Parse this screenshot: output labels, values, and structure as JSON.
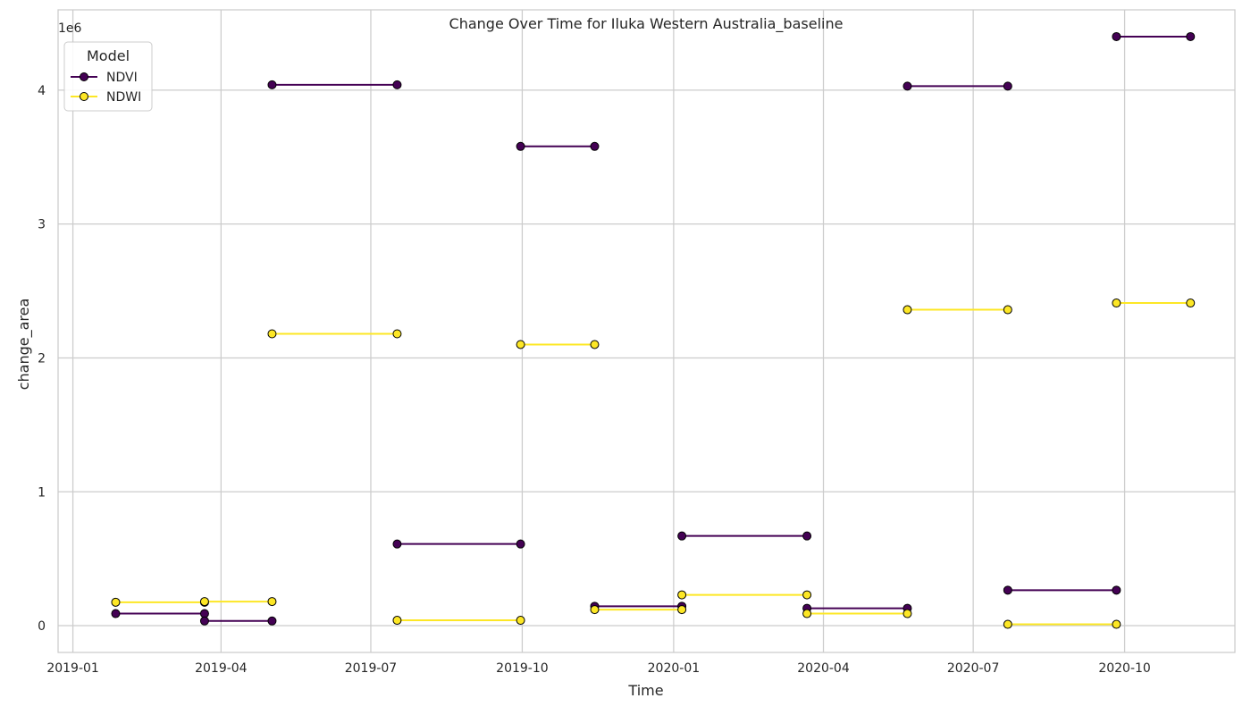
{
  "chart_data": {
    "type": "line",
    "title": "Change Over Time for Iluka Western Australia_baseline",
    "xlabel": "Time",
    "ylabel": "change_area",
    "y_offset_label": "1e6",
    "ylim": [
      -200000,
      4600000
    ],
    "xlim": [
      "2018-12-23",
      "2020-12-07"
    ],
    "x_ticks": [
      "2019-01-01",
      "2019-04-01",
      "2019-07-01",
      "2019-10-01",
      "2020-01-01",
      "2020-04-01",
      "2020-07-01",
      "2020-10-01"
    ],
    "x_tick_labels": [
      "2019-01",
      "2019-04",
      "2019-07",
      "2019-10",
      "2020-01",
      "2020-04",
      "2020-07",
      "2020-10"
    ],
    "y_ticks": [
      0,
      1000000,
      2000000,
      3000000,
      4000000
    ],
    "y_tick_labels": [
      "0",
      "1",
      "2",
      "3",
      "4"
    ],
    "grid": true,
    "legend": {
      "title": "Model",
      "placement": "top-left"
    },
    "series": [
      {
        "name": "NDVI",
        "color": "#440154",
        "segments": [
          [
            [
              "2019-01-27",
              90000
            ],
            [
              "2019-03-22",
              90000
            ]
          ],
          [
            [
              "2019-03-22",
              35000
            ],
            [
              "2019-05-02",
              35000
            ]
          ],
          [
            [
              "2019-05-02",
              4040000
            ],
            [
              "2019-07-17",
              4040000
            ]
          ],
          [
            [
              "2019-07-17",
              610000
            ],
            [
              "2019-09-30",
              610000
            ]
          ],
          [
            [
              "2019-09-30",
              3580000
            ],
            [
              "2019-11-14",
              3580000
            ]
          ],
          [
            [
              "2019-11-14",
              145000
            ],
            [
              "2020-01-06",
              145000
            ]
          ],
          [
            [
              "2020-01-06",
              670000
            ],
            [
              "2020-03-22",
              670000
            ]
          ],
          [
            [
              "2020-03-22",
              130000
            ],
            [
              "2020-05-22",
              130000
            ]
          ],
          [
            [
              "2020-05-22",
              4030000
            ],
            [
              "2020-07-22",
              4030000
            ]
          ],
          [
            [
              "2020-07-22",
              265000
            ],
            [
              "2020-09-26",
              265000
            ]
          ],
          [
            [
              "2020-09-26",
              4400000
            ],
            [
              "2020-11-10",
              4400000
            ]
          ]
        ]
      },
      {
        "name": "NDWI",
        "color": "#fde725",
        "segments": [
          [
            [
              "2019-01-27",
              175000
            ],
            [
              "2019-03-22",
              175000
            ]
          ],
          [
            [
              "2019-03-22",
              180000
            ],
            [
              "2019-05-02",
              180000
            ]
          ],
          [
            [
              "2019-05-02",
              2180000
            ],
            [
              "2019-07-17",
              2180000
            ]
          ],
          [
            [
              "2019-07-17",
              40000
            ],
            [
              "2019-09-30",
              40000
            ]
          ],
          [
            [
              "2019-09-30",
              2100000
            ],
            [
              "2019-11-14",
              2100000
            ]
          ],
          [
            [
              "2019-11-14",
              120000
            ],
            [
              "2020-01-06",
              120000
            ]
          ],
          [
            [
              "2020-01-06",
              230000
            ],
            [
              "2020-03-22",
              230000
            ]
          ],
          [
            [
              "2020-03-22",
              90000
            ],
            [
              "2020-05-22",
              90000
            ]
          ],
          [
            [
              "2020-05-22",
              2360000
            ],
            [
              "2020-07-22",
              2360000
            ]
          ],
          [
            [
              "2020-07-22",
              10000
            ],
            [
              "2020-09-26",
              10000
            ]
          ],
          [
            [
              "2020-09-26",
              2410000
            ],
            [
              "2020-11-10",
              2410000
            ]
          ]
        ]
      }
    ]
  }
}
